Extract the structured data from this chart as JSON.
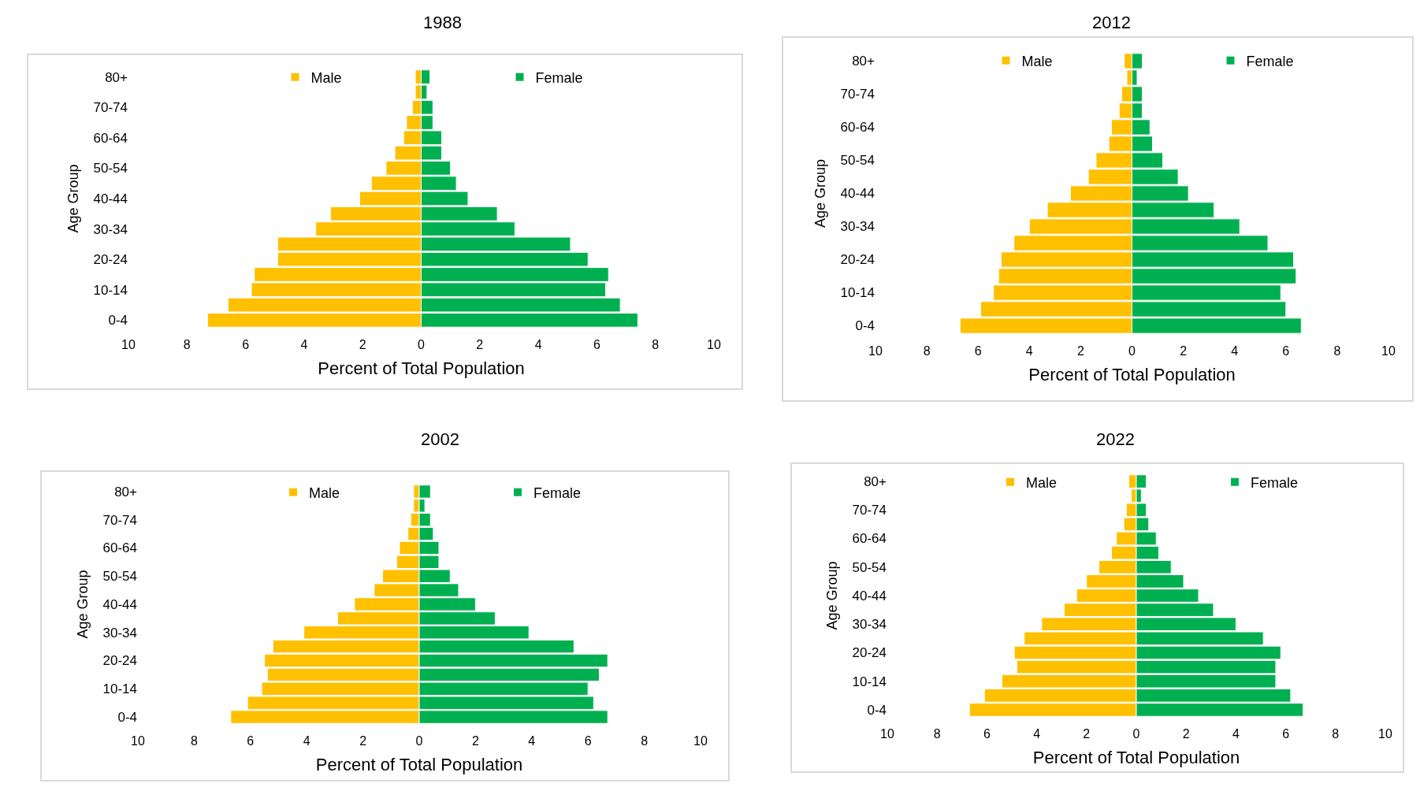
{
  "chart_data": [
    {
      "type": "bar",
      "title": "1988",
      "xlabel": "Percent of Total Population",
      "ylabel": "Age Group",
      "orientation": "horizontal",
      "stacked": true,
      "legend": "top",
      "categories": [
        "80+",
        null,
        "70-74",
        null,
        "60-64",
        null,
        "50-54",
        null,
        "40-44",
        null,
        "30-34",
        null,
        "20-24",
        null,
        "10-14",
        null,
        "0-4"
      ],
      "xlim": [
        -10,
        10
      ],
      "xticks": [
        {
          "value": -10,
          "label": "10"
        },
        {
          "value": -8,
          "label": "8"
        },
        {
          "value": -6,
          "label": "6"
        },
        {
          "value": -4,
          "label": "4"
        },
        {
          "value": -2,
          "label": "2"
        },
        0,
        2,
        4,
        6,
        8,
        10
      ],
      "series": [
        {
          "name": "Male",
          "color": "#ffc000",
          "values": [
            -0.2,
            -0.2,
            -0.3,
            -0.5,
            -0.6,
            -0.9,
            -1.2,
            -1.7,
            -2.1,
            -3.1,
            -3.6,
            -4.9,
            -4.9,
            -5.7,
            -5.8,
            -6.6,
            -7.3
          ]
        },
        {
          "name": "Female",
          "color": "#00b050",
          "values": [
            0.3,
            0.2,
            0.4,
            0.4,
            0.7,
            0.7,
            1.0,
            1.2,
            1.6,
            2.6,
            3.2,
            5.1,
            5.7,
            6.4,
            6.3,
            6.8,
            7.4
          ]
        }
      ]
    },
    {
      "type": "bar",
      "title": "2012",
      "xlabel": "Percent of Total Population",
      "ylabel": "Age Group",
      "orientation": "horizontal",
      "stacked": true,
      "legend": "top",
      "categories": [
        "80+",
        null,
        "70-74",
        null,
        "60-64",
        null,
        "50-54",
        null,
        "40-44",
        null,
        "30-34",
        null,
        "20-24",
        null,
        "10-14",
        null,
        "0-4"
      ],
      "xlim": [
        -10,
        10
      ],
      "xticks": [
        {
          "value": -10,
          "label": "10"
        },
        {
          "value": -8,
          "label": "8"
        },
        {
          "value": -6,
          "label": "6"
        },
        {
          "value": -4,
          "label": "4"
        },
        {
          "value": -2,
          "label": "2"
        },
        0,
        2,
        4,
        6,
        8,
        10
      ],
      "series": [
        {
          "name": "Male",
          "color": "#ffc000",
          "values": [
            -0.3,
            -0.2,
            -0.4,
            -0.5,
            -0.8,
            -0.9,
            -1.4,
            -1.7,
            -2.4,
            -3.3,
            -4.0,
            -4.6,
            -5.1,
            -5.2,
            -5.4,
            -5.9,
            -6.7
          ]
        },
        {
          "name": "Female",
          "color": "#00b050",
          "values": [
            0.4,
            0.2,
            0.4,
            0.4,
            0.7,
            0.8,
            1.2,
            1.8,
            2.2,
            3.2,
            4.2,
            5.3,
            6.3,
            6.4,
            5.8,
            6.0,
            6.6
          ]
        }
      ]
    },
    {
      "type": "bar",
      "title": "2002",
      "xlabel": "Percent of Total Population",
      "ylabel": "Age Group",
      "orientation": "horizontal",
      "stacked": true,
      "legend": "top",
      "categories": [
        "80+",
        null,
        "70-74",
        null,
        "60-64",
        null,
        "50-54",
        null,
        "40-44",
        null,
        "30-34",
        null,
        "20-24",
        null,
        "10-14",
        null,
        "0-4"
      ],
      "xlim": [
        -10,
        10
      ],
      "xticks": [
        {
          "value": -10,
          "label": "10"
        },
        {
          "value": -8,
          "label": "8"
        },
        {
          "value": -6,
          "label": "6"
        },
        {
          "value": -4,
          "label": "4"
        },
        {
          "value": -2,
          "label": "2"
        },
        0,
        2,
        4,
        6,
        8,
        10
      ],
      "series": [
        {
          "name": "Male",
          "color": "#ffc000",
          "values": [
            -0.2,
            -0.2,
            -0.3,
            -0.4,
            -0.7,
            -0.8,
            -1.3,
            -1.6,
            -2.3,
            -2.9,
            -4.1,
            -5.2,
            -5.5,
            -5.4,
            -5.6,
            -6.1,
            -6.7
          ]
        },
        {
          "name": "Female",
          "color": "#00b050",
          "values": [
            0.4,
            0.2,
            0.4,
            0.5,
            0.7,
            0.7,
            1.1,
            1.4,
            2.0,
            2.7,
            3.9,
            5.5,
            6.7,
            6.4,
            6.0,
            6.2,
            6.7
          ]
        }
      ]
    },
    {
      "type": "bar",
      "title": "2022",
      "xlabel": "Percent of Total Population",
      "ylabel": "Age Group",
      "orientation": "horizontal",
      "stacked": true,
      "legend": "top",
      "categories": [
        "80+",
        null,
        "70-74",
        null,
        "60-64",
        null,
        "50-54",
        null,
        "40-44",
        null,
        "30-34",
        null,
        "20-24",
        null,
        "10-14",
        null,
        "0-4"
      ],
      "xlim": [
        -10,
        10
      ],
      "xticks": [
        {
          "value": -10,
          "label": "10"
        },
        {
          "value": -8,
          "label": "8"
        },
        {
          "value": -6,
          "label": "6"
        },
        {
          "value": -4,
          "label": "4"
        },
        {
          "value": -2,
          "label": "2"
        },
        0,
        2,
        4,
        6,
        8,
        10
      ],
      "series": [
        {
          "name": "Male",
          "color": "#ffc000",
          "values": [
            -0.3,
            -0.2,
            -0.4,
            -0.5,
            -0.8,
            -1.0,
            -1.5,
            -2.0,
            -2.4,
            -2.9,
            -3.8,
            -4.5,
            -4.9,
            -4.8,
            -5.4,
            -6.1,
            -6.7
          ]
        },
        {
          "name": "Female",
          "color": "#00b050",
          "values": [
            0.4,
            0.2,
            0.4,
            0.5,
            0.8,
            0.9,
            1.4,
            1.9,
            2.5,
            3.1,
            4.0,
            5.1,
            5.8,
            5.6,
            5.6,
            6.2,
            6.7
          ]
        }
      ]
    }
  ]
}
